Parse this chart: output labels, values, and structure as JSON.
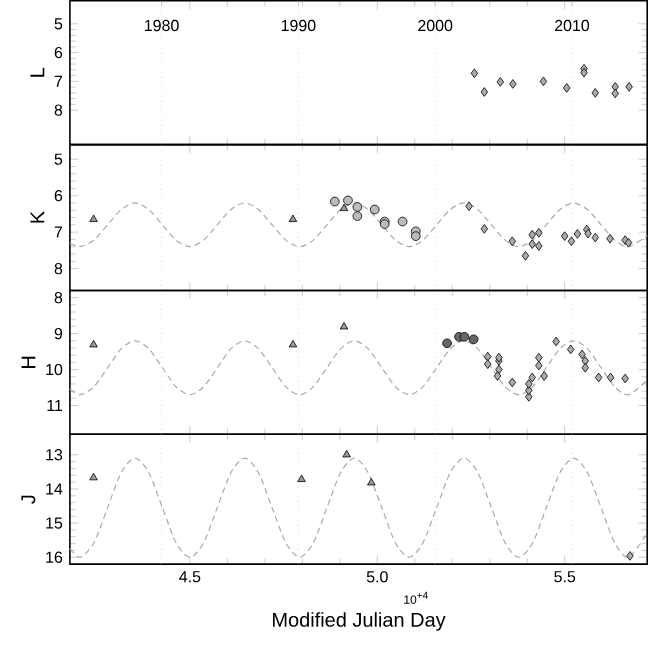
{
  "chart_data": [
    {
      "type": "scatter",
      "ylabel": "L",
      "xlim": [
        4.18,
        5.72
      ],
      "x2lim": [
        1973.3,
        2015.5
      ],
      "x2ticks": [
        1980,
        1990,
        2000,
        2010
      ],
      "ylim": [
        9.2,
        4.2
      ],
      "yticks": [
        5,
        6,
        7,
        8
      ],
      "tick_labels": "y",
      "ref_lines": [
        {
          "axis": "x",
          "value": 4.4239,
          "color": "#cccccc",
          "line_style": "dotted"
        },
        {
          "axis": "x",
          "value": 4.7892,
          "color": "#cccccc",
          "line_style": "dotted"
        },
        {
          "axis": "x",
          "value": 5.1544,
          "color": "#cccccc",
          "line_style": "dotted"
        },
        {
          "axis": "x",
          "value": 5.5197,
          "color": "#cccccc",
          "line_style": "dotted"
        }
      ],
      "series": [
        {
          "marker": "diamond",
          "color": "#aaaaaa",
          "x": [
            5.259,
            5.2856,
            5.3282,
            5.3617,
            5.4431,
            5.5053,
            5.5515,
            5.5515,
            5.5815,
            5.6347,
            5.6347,
            5.6719
          ],
          "values": [
            6.72,
            7.37,
            7.02,
            7.09,
            7.0,
            7.23,
            6.56,
            6.7,
            7.4,
            7.19,
            7.42,
            7.19
          ]
        }
      ]
    },
    {
      "type": "scatter",
      "ylabel": "K",
      "xlim": [
        4.18,
        5.72
      ],
      "ylim": [
        8.6,
        4.6
      ],
      "yticks": [
        5,
        6,
        7,
        8
      ],
      "tick_labels": "y",
      "ref_lines": [
        {
          "axis": "x",
          "value": 4.4239,
          "color": "#cccccc",
          "line_style": "dotted"
        },
        {
          "axis": "x",
          "value": 4.7892,
          "color": "#cccccc",
          "line_style": "dotted"
        },
        {
          "axis": "x",
          "value": 5.1544,
          "color": "#cccccc",
          "line_style": "dotted"
        },
        {
          "axis": "x",
          "value": 5.5197,
          "color": "#cccccc",
          "line_style": "dotted"
        }
      ],
      "series": [
        {
          "type": "line",
          "line_style": "dashed",
          "color": "#aaaaaa",
          "x": [
            4.18,
            4.2074,
            4.244,
            4.2805,
            4.3171,
            4.3537,
            4.3903,
            4.4268,
            4.4634,
            4.5,
            4.5366,
            4.5731,
            4.6097,
            4.6463,
            4.6828,
            4.7194,
            4.756,
            4.7926,
            4.8292,
            4.8657,
            4.9023,
            4.9388,
            4.9754,
            5.012,
            5.0485,
            5.0851,
            5.1217,
            5.1582,
            5.1948,
            5.2314,
            5.268,
            5.3045,
            5.3411,
            5.3777,
            5.4143,
            5.4508,
            5.4874,
            5.5239,
            5.5605,
            5.5971,
            5.6336,
            5.6702,
            5.72
          ],
          "values": [
            7.3,
            7.4,
            7.22,
            6.8,
            6.38,
            6.2,
            6.38,
            6.8,
            7.22,
            7.4,
            7.22,
            6.8,
            6.38,
            6.2,
            6.38,
            6.8,
            7.22,
            7.4,
            7.22,
            6.8,
            6.38,
            6.2,
            6.38,
            6.8,
            7.22,
            7.4,
            7.22,
            6.8,
            6.38,
            6.2,
            6.38,
            6.8,
            7.22,
            7.4,
            7.22,
            6.8,
            6.38,
            6.2,
            6.38,
            6.8,
            7.22,
            7.4,
            7.1
          ]
        },
        {
          "marker": "triangle",
          "color": "#999999",
          "x": [
            4.2431,
            4.775,
            4.9112
          ],
          "values": [
            6.65,
            6.65,
            6.35
          ]
        },
        {
          "marker": "circle",
          "color": "#bbbbbb",
          "x": [
            4.8867,
            4.9218,
            4.9468,
            4.9468,
            4.9931,
            5.0197,
            5.0197,
            5.0675,
            5.1027,
            5.1027
          ],
          "values": [
            6.16,
            6.13,
            6.31,
            6.56,
            6.38,
            6.71,
            6.78,
            6.71,
            6.98,
            7.11
          ]
        },
        {
          "marker": "diamond",
          "color": "#aaaaaa",
          "x": [
            5.2447,
            5.2856,
            5.3601,
            5.3952,
            5.4133,
            5.4133,
            5.4309,
            5.4309,
            5.5,
            5.5179,
            5.5339,
            5.5588,
            5.5622,
            5.5815,
            5.6208,
            5.6612,
            5.6702
          ],
          "values": [
            6.29,
            6.91,
            7.25,
            7.65,
            7.33,
            7.07,
            7.02,
            7.38,
            7.11,
            7.25,
            7.05,
            6.93,
            7.04,
            7.15,
            7.18,
            7.22,
            7.29
          ]
        }
      ]
    },
    {
      "type": "scatter",
      "ylabel": "H",
      "xlim": [
        4.18,
        5.72
      ],
      "ylim": [
        11.8,
        7.8
      ],
      "yticks": [
        8,
        9,
        10,
        11
      ],
      "tick_labels": "y",
      "ref_lines": [
        {
          "axis": "x",
          "value": 4.4239,
          "color": "#cccccc",
          "line_style": "dotted"
        },
        {
          "axis": "x",
          "value": 4.7892,
          "color": "#cccccc",
          "line_style": "dotted"
        },
        {
          "axis": "x",
          "value": 5.1544,
          "color": "#cccccc",
          "line_style": "dotted"
        },
        {
          "axis": "x",
          "value": 5.5197,
          "color": "#cccccc",
          "line_style": "dotted"
        }
      ],
      "series": [
        {
          "type": "line",
          "line_style": "dashed",
          "color": "#aaaaaa",
          "x": [
            4.18,
            4.2074,
            4.244,
            4.2805,
            4.3171,
            4.3537,
            4.3903,
            4.4268,
            4.4634,
            4.5,
            4.5366,
            4.5731,
            4.6097,
            4.6463,
            4.6828,
            4.7194,
            4.756,
            4.7926,
            4.8292,
            4.8657,
            4.9023,
            4.9388,
            4.9754,
            5.012,
            5.0485,
            5.0851,
            5.1217,
            5.1582,
            5.1948,
            5.2314,
            5.268,
            5.3045,
            5.3411,
            5.3777,
            5.4143,
            5.4508,
            5.4874,
            5.5239,
            5.5605,
            5.5971,
            5.6336,
            5.6702,
            5.72
          ],
          "values": [
            10.55,
            10.7,
            10.48,
            9.95,
            9.42,
            9.2,
            9.42,
            9.95,
            10.48,
            10.7,
            10.48,
            9.95,
            9.42,
            9.2,
            9.42,
            9.95,
            10.48,
            10.7,
            10.48,
            9.95,
            9.42,
            9.2,
            9.42,
            9.95,
            10.48,
            10.7,
            10.48,
            9.95,
            9.42,
            9.2,
            9.42,
            9.95,
            10.48,
            10.7,
            10.48,
            9.95,
            9.42,
            9.2,
            9.42,
            9.95,
            10.48,
            10.7,
            10.3
          ]
        },
        {
          "marker": "triangle",
          "color": "#999999",
          "x": [
            4.2431,
            4.775,
            4.9112
          ],
          "values": [
            9.31,
            9.31,
            8.81
          ]
        },
        {
          "marker": "circle",
          "color": "#666666",
          "x": [
            5.1862,
            5.2181,
            5.2324,
            5.257
          ],
          "values": [
            9.27,
            9.09,
            9.09,
            9.16
          ]
        },
        {
          "marker": "diamond",
          "color": "#aaaaaa",
          "x": [
            5.2946,
            5.2946,
            5.3244,
            5.3244,
            5.3207,
            5.3244,
            5.3601,
            5.4043,
            5.4043,
            5.4043,
            5.4133,
            5.4309,
            5.4309,
            5.4452,
            5.4771,
            5.516,
            5.5463,
            5.5548,
            5.5548,
            5.5905,
            5.6224,
            5.6612
          ],
          "values": [
            9.64,
            9.85,
            9.76,
            10.0,
            10.18,
            9.67,
            10.36,
            10.76,
            10.58,
            10.4,
            10.22,
            9.67,
            9.89,
            10.18,
            9.22,
            9.44,
            9.58,
            9.76,
            9.95,
            10.22,
            10.22,
            10.25
          ]
        }
      ]
    },
    {
      "type": "scatter",
      "ylabel": "J",
      "xlabel": "Modified Julian Day",
      "annotations": [
        "10$^{+4}$"
      ],
      "xlim": [
        4.18,
        5.72
      ],
      "xticks": [
        4.5,
        {
          "value": 5.0,
          "label": "5.0"
        },
        5.5
      ],
      "ylim": [
        16.2,
        12.4
      ],
      "yticks": [
        13,
        14,
        15,
        16
      ],
      "ref_lines": [
        {
          "axis": "x",
          "value": 4.4239,
          "color": "#cccccc",
          "line_style": "dotted"
        },
        {
          "axis": "x",
          "value": 4.7892,
          "color": "#cccccc",
          "line_style": "dotted"
        },
        {
          "axis": "x",
          "value": 5.1544,
          "color": "#cccccc",
          "line_style": "dotted"
        },
        {
          "axis": "x",
          "value": 5.5197,
          "color": "#cccccc",
          "line_style": "dotted"
        }
      ],
      "series": [
        {
          "type": "line",
          "line_style": "dashed",
          "color": "#aaaaaa",
          "x": [
            4.18,
            4.2074,
            4.244,
            4.2805,
            4.3171,
            4.3537,
            4.3903,
            4.4268,
            4.4634,
            4.5,
            4.5366,
            4.5731,
            4.6097,
            4.6463,
            4.6828,
            4.7194,
            4.756,
            4.7926,
            4.8292,
            4.8657,
            4.9023,
            4.9388,
            4.9754,
            5.012,
            5.0485,
            5.0851,
            5.1217,
            5.1582,
            5.1948,
            5.2314,
            5.268,
            5.3045,
            5.3411,
            5.3777,
            5.4143,
            5.4508,
            5.4874,
            5.5239,
            5.5605,
            5.5971,
            5.6336,
            5.6702,
            5.72
          ],
          "values": [
            15.75,
            16.0,
            15.58,
            14.55,
            13.52,
            13.1,
            13.52,
            14.55,
            15.58,
            16.0,
            15.58,
            14.55,
            13.52,
            13.1,
            13.52,
            14.55,
            15.58,
            16.0,
            15.58,
            14.55,
            13.52,
            13.1,
            13.52,
            14.55,
            15.58,
            16.0,
            15.58,
            14.55,
            13.52,
            13.1,
            13.52,
            14.55,
            15.58,
            16.0,
            15.58,
            14.55,
            13.52,
            13.1,
            13.52,
            14.55,
            15.58,
            16.0,
            15.3
          ]
        },
        {
          "marker": "triangle",
          "color": "#999999",
          "x": [
            4.2431,
            4.7979,
            4.9183,
            4.9841
          ],
          "values": [
            13.67,
            13.72,
            13.0,
            13.82
          ]
        },
        {
          "marker": "diamond",
          "color": "#aaaaaa",
          "x": [
            5.674
          ],
          "values": [
            15.96
          ]
        }
      ]
    }
  ]
}
